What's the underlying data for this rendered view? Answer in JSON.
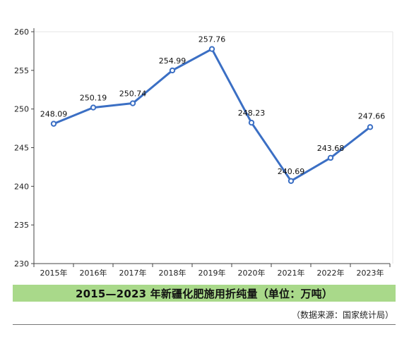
{
  "caption": "2015—2023 年新疆化肥施用折纯量（单位：万吨）",
  "source": "（数据来源：国家统计局）",
  "colors": {
    "line": "#3b6fc4",
    "caption_bg": "#a9d98a"
  },
  "chart_data": {
    "type": "line",
    "categories": [
      "2015年",
      "2016年",
      "2017年",
      "2018年",
      "2019年",
      "2020年",
      "2021年",
      "2022年",
      "2023年"
    ],
    "series": [
      {
        "values": [
          248.09,
          250.19,
          250.74,
          254.99,
          257.76,
          248.23,
          240.69,
          243.68,
          247.66
        ]
      }
    ],
    "data_labels": [
      "248.09",
      "250.19",
      "250.74",
      "254.99",
      "257.76",
      "248.23",
      "240.69",
      "243.68",
      "247.66"
    ],
    "yticks": [
      "230",
      "235",
      "240",
      "245",
      "250",
      "255",
      "260"
    ],
    "ylim": [
      230,
      260
    ],
    "grid": false
  }
}
